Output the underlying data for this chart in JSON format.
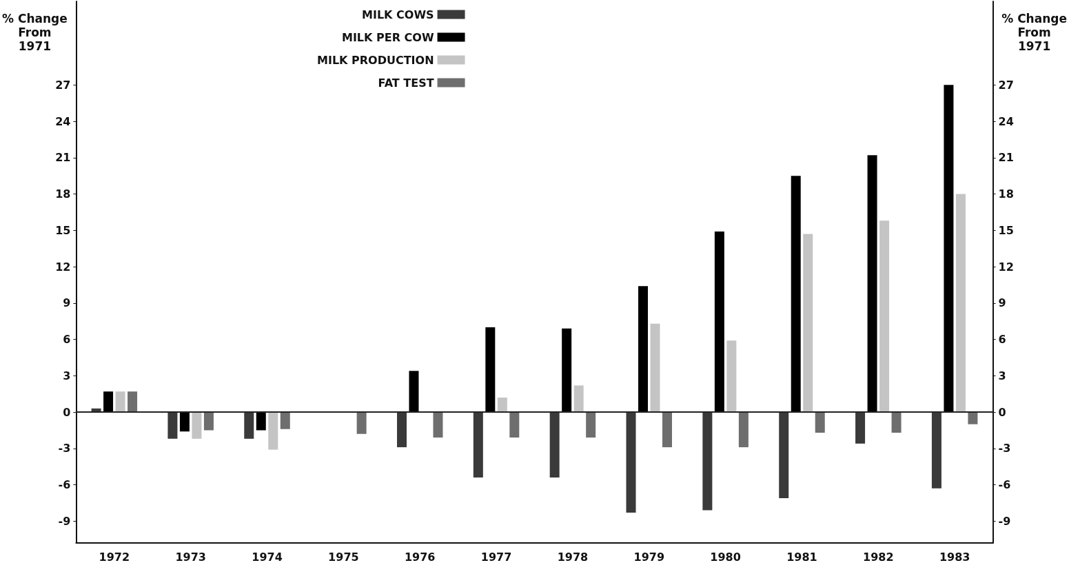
{
  "chart_data": {
    "type": "bar",
    "ylabel": "% Change\nFrom\n1971",
    "y2label": "% Change\nFrom\n1971",
    "categories": [
      "1972",
      "1973",
      "1974",
      "1975",
      "1976",
      "1977",
      "1978",
      "1979",
      "1980",
      "1981",
      "1982",
      "1983"
    ],
    "series": [
      {
        "name": "MILK COWS",
        "color": "#3a3a3a",
        "values": [
          0.3,
          -2.2,
          -2.2,
          0,
          -2.9,
          -5.4,
          -5.4,
          -8.3,
          -8.1,
          -7.1,
          -2.6,
          -6.3
        ]
      },
      {
        "name": "MILK PER COW",
        "color": "#000000",
        "values": [
          1.7,
          -1.6,
          -1.5,
          0,
          3.4,
          7.0,
          6.9,
          10.4,
          14.9,
          19.5,
          21.2,
          27.0
        ]
      },
      {
        "name": "MILK PRODUCTION",
        "color": "#c4c4c4",
        "values": [
          1.7,
          -2.2,
          -3.1,
          0,
          0,
          1.2,
          2.2,
          7.3,
          5.9,
          14.7,
          15.8,
          18.0
        ]
      },
      {
        "name": "FAT TEST",
        "color": "#6e6e6e",
        "values": [
          1.7,
          -1.5,
          -1.4,
          -1.8,
          -2.1,
          -2.1,
          -2.1,
          -2.9,
          -2.9,
          -1.7,
          -1.7,
          -1.0
        ]
      }
    ],
    "ylim": [
      -10.8,
      33.9
    ],
    "yticks": [
      -9,
      -6,
      -3,
      0,
      3,
      6,
      9,
      12,
      15,
      18,
      21,
      24,
      27
    ],
    "y2lim": [
      -10.8,
      33.9
    ],
    "y2ticks": [
      -9,
      -6,
      -3,
      0,
      3,
      6,
      9,
      12,
      15,
      18,
      21,
      24,
      27
    ],
    "ref_lines": [
      {
        "axis": "y",
        "value": 0,
        "color": "#222222"
      }
    ],
    "grid": false,
    "legend": "top"
  }
}
